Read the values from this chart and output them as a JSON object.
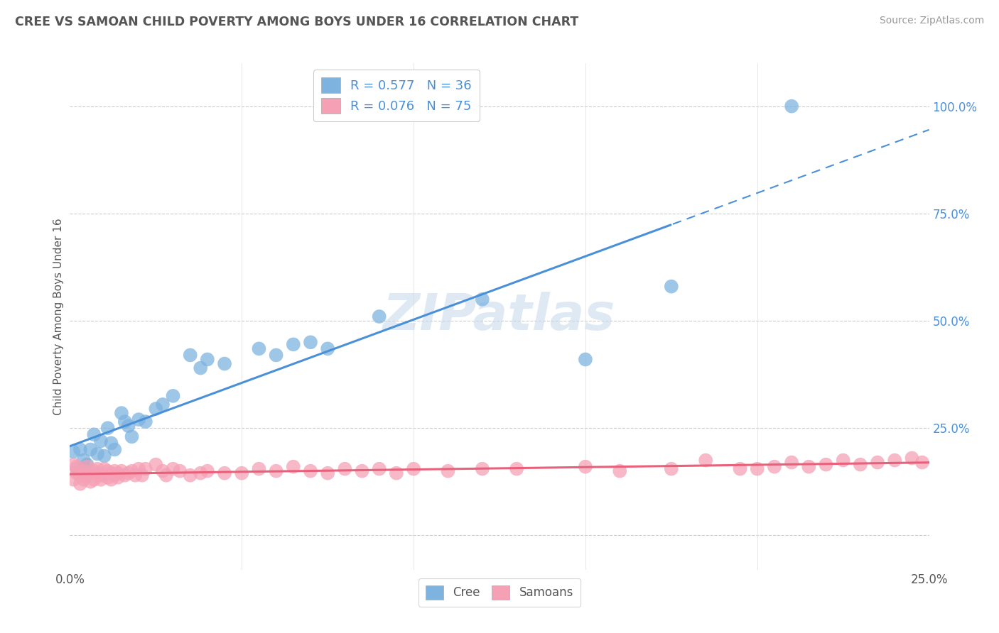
{
  "title": "CREE VS SAMOAN CHILD POVERTY AMONG BOYS UNDER 16 CORRELATION CHART",
  "source": "Source: ZipAtlas.com",
  "ylabel": "Child Poverty Among Boys Under 16",
  "xlim": [
    0.0,
    0.25
  ],
  "ylim": [
    -0.08,
    1.1
  ],
  "xticks": [
    0.0,
    0.05,
    0.1,
    0.15,
    0.2,
    0.25
  ],
  "yticks": [
    0.0,
    0.25,
    0.5,
    0.75,
    1.0
  ],
  "xticklabels": [
    "0.0%",
    "",
    "",
    "",
    "",
    "25.0%"
  ],
  "yticklabels": [
    "",
    "25.0%",
    "50.0%",
    "75.0%",
    "100.0%"
  ],
  "cree_color": "#7eb3e0",
  "samoan_color": "#f5a0b5",
  "cree_line_color": "#4a90d9",
  "samoan_line_color": "#e8607a",
  "legend_text_color": "#4a90d9",
  "watermark": "ZIPatlas",
  "R_cree": 0.577,
  "N_cree": 36,
  "R_samoan": 0.076,
  "N_samoan": 75,
  "cree_x": [
    0.001,
    0.002,
    0.003,
    0.004,
    0.005,
    0.006,
    0.007,
    0.008,
    0.009,
    0.01,
    0.011,
    0.012,
    0.013,
    0.015,
    0.016,
    0.017,
    0.018,
    0.02,
    0.022,
    0.025,
    0.027,
    0.03,
    0.035,
    0.038,
    0.04,
    0.045,
    0.055,
    0.06,
    0.065,
    0.07,
    0.075,
    0.09,
    0.12,
    0.15,
    0.175,
    0.21
  ],
  "cree_y": [
    0.195,
    0.155,
    0.2,
    0.175,
    0.165,
    0.2,
    0.235,
    0.19,
    0.22,
    0.185,
    0.25,
    0.215,
    0.2,
    0.285,
    0.265,
    0.255,
    0.23,
    0.27,
    0.265,
    0.295,
    0.305,
    0.325,
    0.42,
    0.39,
    0.41,
    0.4,
    0.435,
    0.42,
    0.445,
    0.45,
    0.435,
    0.51,
    0.55,
    0.41,
    0.58,
    1.0
  ],
  "samoan_x": [
    0.001,
    0.001,
    0.002,
    0.002,
    0.003,
    0.003,
    0.004,
    0.004,
    0.005,
    0.005,
    0.006,
    0.006,
    0.007,
    0.007,
    0.008,
    0.008,
    0.009,
    0.009,
    0.01,
    0.01,
    0.011,
    0.011,
    0.012,
    0.012,
    0.013,
    0.013,
    0.014,
    0.014,
    0.015,
    0.016,
    0.017,
    0.018,
    0.019,
    0.02,
    0.021,
    0.022,
    0.025,
    0.027,
    0.028,
    0.03,
    0.032,
    0.035,
    0.038,
    0.04,
    0.045,
    0.05,
    0.055,
    0.06,
    0.065,
    0.07,
    0.075,
    0.08,
    0.085,
    0.09,
    0.095,
    0.1,
    0.11,
    0.12,
    0.13,
    0.15,
    0.16,
    0.175,
    0.185,
    0.195,
    0.2,
    0.205,
    0.21,
    0.215,
    0.22,
    0.225,
    0.23,
    0.235,
    0.24,
    0.245,
    0.248
  ],
  "samoan_y": [
    0.165,
    0.13,
    0.145,
    0.16,
    0.14,
    0.12,
    0.15,
    0.13,
    0.16,
    0.14,
    0.145,
    0.125,
    0.15,
    0.13,
    0.145,
    0.155,
    0.14,
    0.13,
    0.155,
    0.14,
    0.15,
    0.135,
    0.145,
    0.13,
    0.15,
    0.14,
    0.145,
    0.135,
    0.15,
    0.14,
    0.145,
    0.15,
    0.14,
    0.155,
    0.14,
    0.155,
    0.165,
    0.15,
    0.14,
    0.155,
    0.15,
    0.14,
    0.145,
    0.15,
    0.145,
    0.145,
    0.155,
    0.15,
    0.16,
    0.15,
    0.145,
    0.155,
    0.15,
    0.155,
    0.145,
    0.155,
    0.15,
    0.155,
    0.155,
    0.16,
    0.15,
    0.155,
    0.175,
    0.155,
    0.155,
    0.16,
    0.17,
    0.16,
    0.165,
    0.175,
    0.165,
    0.17,
    0.175,
    0.18,
    0.17
  ],
  "cree_line_solid_end": 0.175,
  "cree_line_x_start": 0.0,
  "cree_line_x_end": 0.245
}
